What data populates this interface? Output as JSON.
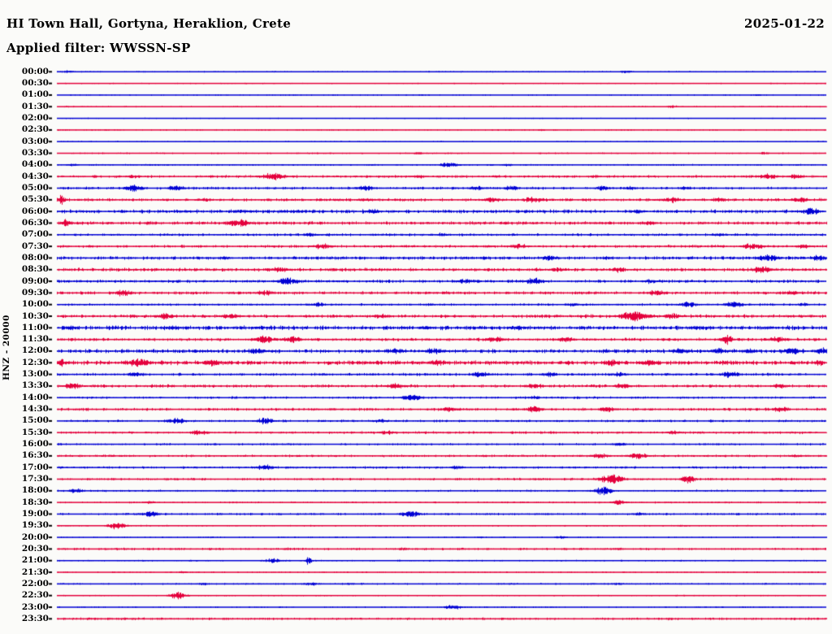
{
  "header": {
    "title": "HI Town Hall, Gortyna, Heraklion, Crete",
    "date": "2025-01-22",
    "filter_label": "Applied filter: WWSSN-SP"
  },
  "station_axis_label": "HNZ - 20000",
  "colors": {
    "background": "#fbfbf9",
    "text": "#000000",
    "tick": "#000000",
    "trace_blue": "#0000d4",
    "trace_red": "#e4003c"
  },
  "chart_data": {
    "type": "line",
    "title": "24-hour helicorder seismogram, channel HNZ, scale 20000, filter WWSSN-SP",
    "x_axis": {
      "start": "00:00",
      "end": "23:30",
      "row_interval_minutes": 30,
      "rows_count": 48
    },
    "legend": "rows alternate blue/red, one 30-minute segment per row",
    "rows": [
      {
        "t": "00:00",
        "c": "blue",
        "b": 0.5,
        "e": [
          [
            0.015,
            1.5,
            8
          ],
          [
            0.74,
            1.5,
            10
          ]
        ]
      },
      {
        "t": "00:30",
        "c": "red",
        "b": 0.45,
        "e": []
      },
      {
        "t": "01:00",
        "c": "blue",
        "b": 0.45,
        "e": [
          [
            0.91,
            1.0,
            6
          ]
        ]
      },
      {
        "t": "01:30",
        "c": "red",
        "b": 0.5,
        "e": [
          [
            0.8,
            1.5,
            8
          ]
        ]
      },
      {
        "t": "02:00",
        "c": "blue",
        "b": 0.45,
        "e": []
      },
      {
        "t": "02:30",
        "c": "red",
        "b": 0.5,
        "e": [
          [
            0.63,
            1.0,
            6
          ]
        ]
      },
      {
        "t": "03:00",
        "c": "blue",
        "b": 0.45,
        "e": []
      },
      {
        "t": "03:30",
        "c": "red",
        "b": 0.55,
        "e": [
          [
            0.47,
            1.5,
            8
          ],
          [
            0.92,
            1.5,
            8
          ]
        ]
      },
      {
        "t": "04:00",
        "c": "blue",
        "b": 0.6,
        "e": [
          [
            0.02,
            1.5,
            8
          ],
          [
            0.51,
            2.5,
            14
          ],
          [
            0.585,
            1.5,
            8
          ]
        ]
      },
      {
        "t": "04:30",
        "c": "red",
        "b": 0.95,
        "e": [
          [
            0.1,
            2.0,
            10
          ],
          [
            0.28,
            3.5,
            18
          ],
          [
            0.47,
            2.0,
            10
          ],
          [
            0.7,
            1.8,
            8
          ],
          [
            0.925,
            3.0,
            14
          ],
          [
            0.96,
            2.5,
            10
          ]
        ]
      },
      {
        "t": "05:00",
        "c": "blue",
        "b": 0.95,
        "e": [
          [
            0.1,
            3.5,
            12
          ],
          [
            0.155,
            3.0,
            12
          ],
          [
            0.4,
            3.0,
            12
          ],
          [
            0.545,
            2.5,
            10
          ],
          [
            0.59,
            2.5,
            10
          ],
          [
            0.71,
            2.5,
            10
          ],
          [
            0.745,
            2.0,
            8
          ],
          [
            0.815,
            2.0,
            8
          ]
        ]
      },
      {
        "t": "05:30",
        "c": "red",
        "b": 1.1,
        "e": [
          [
            0.005,
            5.0,
            5
          ],
          [
            0.19,
            2.0,
            10
          ],
          [
            0.4,
            2.0,
            10
          ],
          [
            0.565,
            3.0,
            12
          ],
          [
            0.62,
            3.5,
            14
          ],
          [
            0.8,
            3.0,
            12
          ],
          [
            0.86,
            2.5,
            10
          ],
          [
            0.965,
            3.0,
            12
          ]
        ]
      },
      {
        "t": "06:00",
        "c": "blue",
        "b": 1.3,
        "e": [
          [
            0.24,
            2.0,
            10
          ],
          [
            0.31,
            2.0,
            10
          ],
          [
            0.41,
            2.5,
            10
          ],
          [
            0.755,
            2.0,
            10
          ],
          [
            0.98,
            4.0,
            12
          ]
        ]
      },
      {
        "t": "06:30",
        "c": "red",
        "b": 1.2,
        "e": [
          [
            0.012,
            4.0,
            8
          ],
          [
            0.235,
            4.0,
            16
          ],
          [
            0.77,
            2.0,
            10
          ]
        ]
      },
      {
        "t": "07:00",
        "c": "blue",
        "b": 0.95,
        "e": [
          [
            0.33,
            2.0,
            10
          ],
          [
            0.5,
            2.0,
            10
          ],
          [
            0.86,
            2.0,
            10
          ]
        ]
      },
      {
        "t": "07:30",
        "c": "red",
        "b": 1.0,
        "e": [
          [
            0.345,
            3.0,
            12
          ],
          [
            0.6,
            3.0,
            12
          ],
          [
            0.905,
            3.5,
            14
          ],
          [
            0.97,
            2.5,
            10
          ]
        ]
      },
      {
        "t": "08:00",
        "c": "blue",
        "b": 1.2,
        "e": [
          [
            0.215,
            2.0,
            10
          ],
          [
            0.64,
            3.0,
            12
          ],
          [
            0.715,
            2.0,
            8
          ],
          [
            0.925,
            4.0,
            14
          ],
          [
            0.99,
            3.0,
            10
          ]
        ]
      },
      {
        "t": "08:30",
        "c": "red",
        "b": 1.2,
        "e": [
          [
            0.29,
            3.0,
            12
          ],
          [
            0.65,
            2.5,
            10
          ],
          [
            0.73,
            3.0,
            12
          ],
          [
            0.915,
            3.5,
            14
          ]
        ]
      },
      {
        "t": "09:00",
        "c": "blue",
        "b": 1.1,
        "e": [
          [
            0.3,
            4.0,
            14
          ],
          [
            0.53,
            3.0,
            12
          ],
          [
            0.62,
            3.5,
            12
          ],
          [
            0.77,
            2.5,
            10
          ]
        ]
      },
      {
        "t": "09:30",
        "c": "red",
        "b": 1.1,
        "e": [
          [
            0.085,
            3.5,
            12
          ],
          [
            0.27,
            3.0,
            12
          ],
          [
            0.78,
            3.5,
            12
          ],
          [
            0.955,
            2.5,
            10
          ]
        ]
      },
      {
        "t": "10:00",
        "c": "blue",
        "b": 0.85,
        "e": [
          [
            0.34,
            2.5,
            10
          ],
          [
            0.67,
            2.0,
            10
          ],
          [
            0.82,
            3.0,
            12
          ],
          [
            0.88,
            3.5,
            12
          ],
          [
            0.97,
            2.0,
            8
          ]
        ]
      },
      {
        "t": "10:30",
        "c": "red",
        "b": 1.2,
        "e": [
          [
            0.14,
            3.5,
            12
          ],
          [
            0.225,
            3.0,
            12
          ],
          [
            0.42,
            2.5,
            10
          ],
          [
            0.75,
            5.0,
            20
          ],
          [
            0.8,
            3.0,
            12
          ]
        ]
      },
      {
        "t": "11:00",
        "c": "blue",
        "b": 1.5,
        "e": [
          [
            0.02,
            2.5,
            10
          ],
          [
            0.15,
            2.5,
            10
          ],
          [
            0.48,
            2.5,
            10
          ],
          [
            0.6,
            2.5,
            10
          ],
          [
            0.83,
            2.5,
            10
          ]
        ]
      },
      {
        "t": "11:30",
        "c": "red",
        "b": 1.1,
        "e": [
          [
            0.27,
            4.0,
            14
          ],
          [
            0.305,
            3.5,
            12
          ],
          [
            0.57,
            3.0,
            12
          ],
          [
            0.66,
            3.0,
            12
          ],
          [
            0.87,
            5.0,
            8
          ],
          [
            0.935,
            3.0,
            12
          ]
        ]
      },
      {
        "t": "12:00",
        "c": "blue",
        "b": 1.4,
        "e": [
          [
            0.26,
            3.0,
            12
          ],
          [
            0.44,
            3.0,
            12
          ],
          [
            0.49,
            3.5,
            12
          ],
          [
            0.81,
            3.5,
            12
          ],
          [
            0.86,
            3.0,
            12
          ],
          [
            0.9,
            3.0,
            10
          ],
          [
            0.955,
            3.5,
            12
          ],
          [
            0.995,
            4.0,
            8
          ]
        ]
      },
      {
        "t": "12:30",
        "c": "red",
        "b": 1.5,
        "e": [
          [
            0.005,
            4.0,
            6
          ],
          [
            0.105,
            4.5,
            16
          ],
          [
            0.2,
            3.5,
            12
          ],
          [
            0.495,
            3.5,
            12
          ],
          [
            0.72,
            3.5,
            12
          ],
          [
            0.77,
            3.0,
            12
          ],
          [
            0.99,
            3.0,
            8
          ]
        ]
      },
      {
        "t": "13:00",
        "c": "blue",
        "b": 1.0,
        "e": [
          [
            0.1,
            2.5,
            10
          ],
          [
            0.55,
            3.0,
            12
          ],
          [
            0.64,
            2.5,
            10
          ],
          [
            0.73,
            2.5,
            10
          ],
          [
            0.875,
            3.5,
            12
          ]
        ]
      },
      {
        "t": "13:30",
        "c": "red",
        "b": 1.1,
        "e": [
          [
            0.02,
            3.5,
            12
          ],
          [
            0.44,
            3.0,
            12
          ],
          [
            0.62,
            3.0,
            12
          ],
          [
            0.735,
            3.0,
            12
          ],
          [
            0.94,
            2.5,
            10
          ]
        ]
      },
      {
        "t": "14:00",
        "c": "blue",
        "b": 0.85,
        "e": [
          [
            0.46,
            3.5,
            12
          ],
          [
            0.62,
            2.0,
            10
          ]
        ]
      },
      {
        "t": "14:30",
        "c": "red",
        "b": 1.0,
        "e": [
          [
            0.51,
            3.0,
            12
          ],
          [
            0.62,
            3.0,
            12
          ],
          [
            0.715,
            3.0,
            12
          ],
          [
            0.94,
            3.0,
            12
          ]
        ]
      },
      {
        "t": "15:00",
        "c": "blue",
        "b": 0.85,
        "e": [
          [
            0.155,
            3.5,
            12
          ],
          [
            0.27,
            3.5,
            12
          ],
          [
            0.42,
            2.0,
            10
          ]
        ]
      },
      {
        "t": "15:30",
        "c": "red",
        "b": 0.95,
        "e": [
          [
            0.185,
            3.0,
            12
          ],
          [
            0.43,
            2.5,
            10
          ],
          [
            0.8,
            2.0,
            10
          ]
        ]
      },
      {
        "t": "16:00",
        "c": "blue",
        "b": 0.75,
        "e": [
          [
            0.73,
            2.0,
            10
          ]
        ]
      },
      {
        "t": "16:30",
        "c": "red",
        "b": 0.85,
        "e": [
          [
            0.705,
            3.0,
            12
          ],
          [
            0.755,
            3.5,
            12
          ],
          [
            0.96,
            2.0,
            8
          ]
        ]
      },
      {
        "t": "17:00",
        "c": "blue",
        "b": 0.85,
        "e": [
          [
            0.27,
            3.0,
            12
          ],
          [
            0.52,
            2.0,
            10
          ]
        ]
      },
      {
        "t": "17:30",
        "c": "red",
        "b": 0.85,
        "e": [
          [
            0.72,
            5.0,
            16
          ],
          [
            0.82,
            4.0,
            10
          ]
        ]
      },
      {
        "t": "18:00",
        "c": "blue",
        "b": 0.75,
        "e": [
          [
            0.025,
            2.5,
            10
          ],
          [
            0.71,
            4.0,
            12
          ]
        ]
      },
      {
        "t": "18:30",
        "c": "red",
        "b": 0.65,
        "e": [
          [
            0.12,
            1.5,
            8
          ],
          [
            0.73,
            2.5,
            10
          ]
        ]
      },
      {
        "t": "19:00",
        "c": "blue",
        "b": 0.8,
        "e": [
          [
            0.12,
            3.0,
            12
          ],
          [
            0.458,
            3.5,
            12
          ],
          [
            0.755,
            2.0,
            10
          ]
        ]
      },
      {
        "t": "19:30",
        "c": "red",
        "b": 0.55,
        "e": [
          [
            0.078,
            3.5,
            12
          ]
        ]
      },
      {
        "t": "20:00",
        "c": "blue",
        "b": 0.5,
        "e": [
          [
            0.2,
            1.0,
            6
          ],
          [
            0.55,
            1.0,
            6
          ],
          [
            0.655,
            1.5,
            8
          ]
        ]
      },
      {
        "t": "20:30",
        "c": "red",
        "b": 0.85,
        "e": [
          [
            0.3,
            1.5,
            8
          ],
          [
            0.45,
            1.5,
            8
          ],
          [
            0.73,
            1.5,
            8
          ]
        ]
      },
      {
        "t": "21:00",
        "c": "blue",
        "b": 0.55,
        "e": [
          [
            0.28,
            2.5,
            12
          ],
          [
            0.327,
            4.5,
            4
          ]
        ]
      },
      {
        "t": "21:30",
        "c": "red",
        "b": 0.5,
        "e": [
          [
            0.163,
            1.5,
            6
          ]
        ]
      },
      {
        "t": "22:00",
        "c": "blue",
        "b": 0.6,
        "e": [
          [
            0.19,
            1.5,
            8
          ],
          [
            0.33,
            2.0,
            10
          ],
          [
            0.38,
            1.5,
            8
          ],
          [
            0.59,
            1.0,
            6
          ],
          [
            0.73,
            1.5,
            8
          ]
        ]
      },
      {
        "t": "22:30",
        "c": "red",
        "b": 0.5,
        "e": [
          [
            0.157,
            3.5,
            12
          ]
        ]
      },
      {
        "t": "23:00",
        "c": "blue",
        "b": 0.5,
        "e": [
          [
            0.515,
            2.5,
            12
          ]
        ]
      },
      {
        "t": "23:30",
        "c": "red",
        "b": 0.9,
        "e": []
      }
    ]
  }
}
